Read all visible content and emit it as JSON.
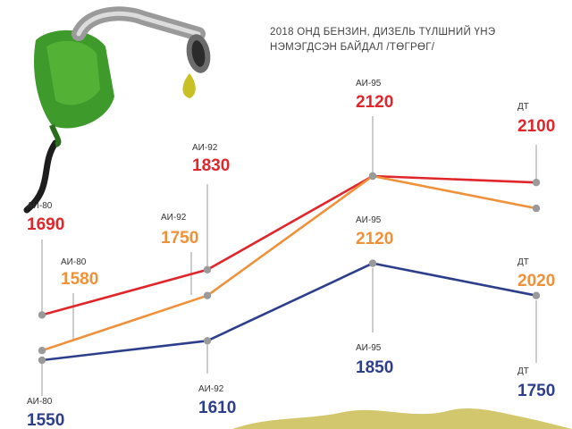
{
  "title_lines": [
    "2018 ОНД БЕНЗИН, ДИЗЕЛЬ ТҮЛШНИЙ ҮНЭ",
    "НЭМЭГДСЭН БАЙДАЛ /ТӨГРӨГ/"
  ],
  "chart_data": {
    "type": "line",
    "series": [
      {
        "color": "#e0262b",
        "points": [
          {
            "label": "АИ-80",
            "value": 1690
          },
          {
            "label": "АИ-92",
            "value": 1830
          },
          {
            "label": "АИ-95",
            "value": 2120
          },
          {
            "label": "ДТ",
            "value": 2100
          }
        ]
      },
      {
        "color": "#f0913a",
        "points": [
          {
            "label": "АИ-80",
            "value": 1580
          },
          {
            "label": "АИ-92",
            "value": 1750
          },
          {
            "label": "АИ-95",
            "value": 2120
          },
          {
            "label": "ДТ",
            "value": 2020
          }
        ]
      },
      {
        "color": "#2d3f8c",
        "points": [
          {
            "label": "АИ-80",
            "value": 1550
          },
          {
            "label": "АИ-92",
            "value": 1610
          },
          {
            "label": "АИ-95",
            "value": 1850
          },
          {
            "label": "ДТ",
            "value": 1750
          }
        ]
      }
    ],
    "marker_color": "#9a9a9a"
  }
}
